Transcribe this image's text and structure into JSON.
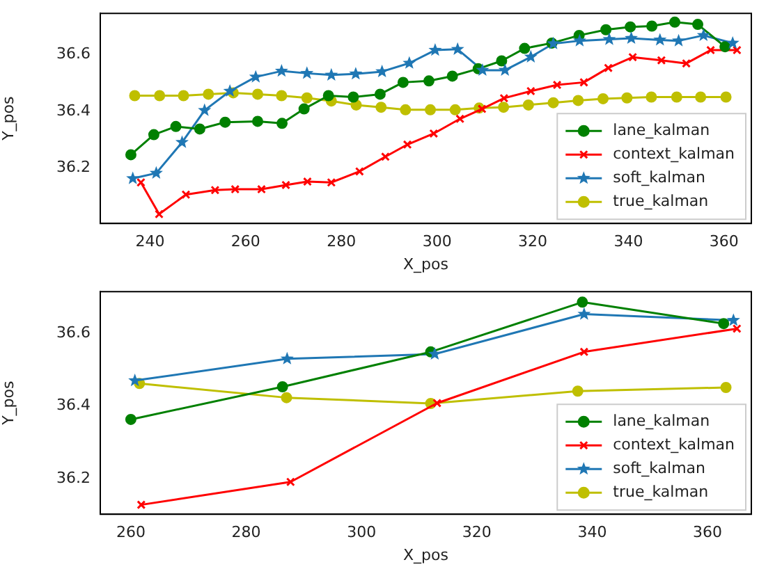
{
  "chart_data": [
    {
      "type": "line",
      "xlabel": "X_pos",
      "ylabel": "Y_pos",
      "xlim": [
        229.6,
        365.7
      ],
      "ylim": [
        36.003,
        36.746
      ],
      "xticks": [
        240,
        260,
        280,
        300,
        320,
        340,
        360
      ],
      "yticks": [
        36.2,
        36.4,
        36.6
      ],
      "grid": false,
      "legend": "bottom right",
      "series": [
        {
          "name": "lane_kalman",
          "color": "#008000",
          "marker": "circle",
          "x": [
            236,
            240.8,
            245.4,
            250.4,
            255.7,
            262.5,
            267.6,
            272.2,
            277.3,
            282.5,
            288.1,
            292.9,
            298.3,
            303.2,
            308.6,
            313.5,
            318.3,
            324,
            329.7,
            335.3,
            340.4,
            344.9,
            349.7,
            354.5,
            360.2
          ],
          "values": [
            36.246,
            36.317,
            36.346,
            36.337,
            36.361,
            36.364,
            36.357,
            36.408,
            36.455,
            36.45,
            36.46,
            36.502,
            36.507,
            36.524,
            36.55,
            36.578,
            36.622,
            36.641,
            36.668,
            36.688,
            36.698,
            36.701,
            36.715,
            36.707,
            36.628
          ]
        },
        {
          "name": "context_kalman",
          "color": "#ff0000",
          "marker": "cross",
          "x": [
            238.1,
            241.9,
            247.5,
            253.6,
            257.8,
            263.3,
            268.4,
            272.9,
            277.9,
            283.8,
            289.2,
            293.8,
            299.3,
            304.8,
            309.4,
            314,
            319.6,
            325.1,
            330.7,
            335.8,
            340.9,
            346.9,
            352.1,
            357.2,
            362.7
          ],
          "values": [
            36.148,
            36.036,
            36.105,
            36.121,
            36.124,
            36.124,
            36.139,
            36.151,
            36.148,
            36.187,
            36.239,
            36.282,
            36.321,
            36.373,
            36.408,
            36.446,
            36.471,
            36.493,
            36.502,
            36.553,
            36.591,
            36.58,
            36.569,
            36.616,
            36.616
          ]
        },
        {
          "name": "soft_kalman",
          "color": "#1f77b4",
          "marker": "star",
          "x": [
            236.4,
            241.3,
            246.7,
            251.4,
            256.7,
            262.1,
            267.5,
            272.8,
            277.9,
            283,
            288.5,
            294.2,
            299.6,
            304.3,
            309.5,
            314.2,
            319.6,
            324.3,
            329.8,
            336,
            340.6,
            346.6,
            350.5,
            355.7,
            361.8
          ],
          "values": [
            36.162,
            36.181,
            36.29,
            36.403,
            36.471,
            36.521,
            36.542,
            36.534,
            36.528,
            36.532,
            36.54,
            36.57,
            36.616,
            36.619,
            36.545,
            36.545,
            36.592,
            36.639,
            36.649,
            36.654,
            36.658,
            36.652,
            36.649,
            36.668,
            36.641
          ]
        },
        {
          "name": "true_kalman",
          "color": "#bfbf00",
          "marker": "circle",
          "x": [
            236.8,
            242,
            247,
            252.2,
            257.4,
            262.5,
            267.5,
            272.8,
            277.9,
            283.1,
            288.3,
            293.4,
            298.6,
            303.8,
            308.8,
            313.9,
            319.1,
            324.3,
            329.5,
            334.7,
            339.7,
            344.8,
            350.1,
            355.1,
            360.4
          ],
          "values": [
            36.455,
            36.455,
            36.455,
            36.46,
            36.465,
            36.46,
            36.455,
            36.447,
            36.436,
            36.422,
            36.414,
            36.405,
            36.405,
            36.405,
            36.411,
            36.414,
            36.422,
            36.43,
            36.438,
            36.444,
            36.447,
            36.45,
            36.45,
            36.45,
            36.45
          ]
        }
      ]
    },
    {
      "type": "line",
      "xlabel": "X_pos",
      "ylabel": "Y_pos",
      "xlim": [
        254.7,
        367.6
      ],
      "ylim": [
        36.102,
        36.715
      ],
      "xticks": [
        260,
        280,
        300,
        320,
        340,
        360
      ],
      "yticks": [
        36.2,
        36.4,
        36.6
      ],
      "grid": false,
      "legend": "bottom right",
      "series": [
        {
          "name": "lane_kalman",
          "color": "#008000",
          "marker": "circle",
          "x": [
            260,
            286.3,
            312,
            338.3,
            362.8
          ],
          "values": [
            36.363,
            36.453,
            36.549,
            36.686,
            36.627
          ]
        },
        {
          "name": "context_kalman",
          "color": "#ff0000",
          "marker": "cross",
          "x": [
            261.8,
            287.7,
            313.1,
            338.6,
            365.1
          ],
          "values": [
            36.128,
            36.191,
            36.408,
            36.549,
            36.613
          ]
        },
        {
          "name": "soft_kalman",
          "color": "#1f77b4",
          "marker": "star",
          "x": [
            260.7,
            287.1,
            312.7,
            338.6,
            364.5
          ],
          "values": [
            36.47,
            36.53,
            36.543,
            36.653,
            36.636
          ]
        },
        {
          "name": "true_kalman",
          "color": "#bfbf00",
          "marker": "circle",
          "x": [
            261.5,
            287,
            312,
            337.5,
            363.2
          ],
          "values": [
            36.462,
            36.423,
            36.407,
            36.441,
            36.451
          ]
        }
      ]
    }
  ]
}
